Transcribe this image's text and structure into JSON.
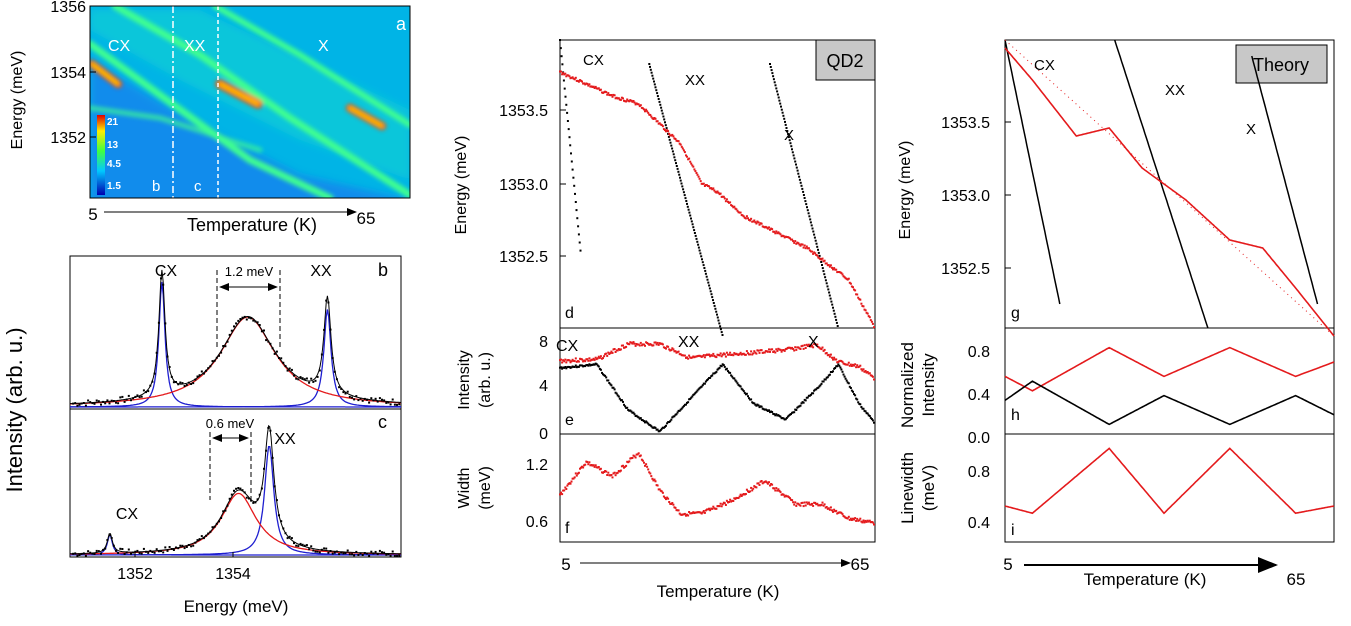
{
  "colors": {
    "red": "#e41a1c",
    "black": "#000000",
    "blue": "#1f1fd0",
    "gray": "#c8c8c8"
  },
  "chart_data": [
    {
      "panel": "a",
      "type": "heatmap",
      "ylabel": "Energy (meV)",
      "xlabel": "Temperature (K)",
      "y_ticks": [
        "1356",
        "1354",
        "1352"
      ],
      "x_ticks": [
        "5",
        "65"
      ],
      "ylim": [
        1350.3,
        1356
      ],
      "colorbar_labels": [
        "21",
        "13",
        "4.5",
        "1.5"
      ],
      "line_labels": [
        "CX",
        "XX",
        "X"
      ],
      "cut_labels": [
        "b",
        "c"
      ]
    },
    {
      "panel": "b",
      "type": "line",
      "ylabel": "Intensity (arb. u.)",
      "peak_labels": [
        "CX",
        "XX"
      ],
      "annotation": "1.2 meV",
      "series": [
        {
          "name": "CX",
          "center": 1352.1
        },
        {
          "name": "XX",
          "center": 1354.8
        },
        {
          "name": "",
          "center": 1353.5
        }
      ]
    },
    {
      "panel": "c",
      "type": "line",
      "xlabel": "Energy (meV)",
      "x_ticks": [
        "1352",
        "1354"
      ],
      "xlim": [
        1350.6,
        1356.0
      ],
      "peak_labels": [
        "CX",
        "XX"
      ],
      "annotation": "0.6 meV",
      "series": [
        {
          "name": "CX",
          "center": 1351.25
        },
        {
          "name": "XX",
          "center": 1353.85
        },
        {
          "name": "",
          "center": 1353.35
        }
      ]
    },
    {
      "panel": "d",
      "type": "scatter",
      "box_label": "QD2",
      "ylabel": "Energy (meV)",
      "y_ticks": [
        "1353.5",
        "1353.0",
        "1352.5"
      ],
      "ylim": [
        1352.15,
        1353.95
      ],
      "line_labels": [
        "CX",
        "XX",
        "X"
      ],
      "series": [
        {
          "name": "CX",
          "x": [
            5,
            9
          ],
          "y": [
            1353.95,
            1352.6
          ]
        },
        {
          "name": "XX",
          "x": [
            22,
            36
          ],
          "y": [
            1353.8,
            1352.1
          ]
        },
        {
          "name": "X",
          "x": [
            45,
            58
          ],
          "y": [
            1353.8,
            1352.15
          ]
        },
        {
          "name": "",
          "x": [
            5,
            15,
            20,
            28,
            32,
            35,
            40,
            46,
            52,
            60,
            65
          ],
          "y": [
            1353.75,
            1353.6,
            1353.55,
            1353.3,
            1353.05,
            1353.0,
            1352.85,
            1352.75,
            1352.65,
            1352.45,
            1352.15
          ]
        }
      ]
    },
    {
      "panel": "e",
      "type": "scatter",
      "ylabel": "Intensity (arb. u.)",
      "y_ticks": [
        "8",
        "4",
        "0"
      ],
      "ylim": [
        0,
        8
      ],
      "line_labels": [
        "CX",
        "XX",
        "X"
      ],
      "series": [
        {
          "name": "",
          "x": [
            5,
            12,
            18,
            24,
            30,
            36,
            42,
            48,
            54,
            58,
            62,
            65
          ],
          "y": [
            6.1,
            6.2,
            7.5,
            7.5,
            6.3,
            6.6,
            6.8,
            7.0,
            7.4,
            6.0,
            5.6,
            4.6
          ]
        },
        {
          "name": "",
          "x": [
            5,
            12,
            18,
            24,
            30,
            36,
            42,
            48,
            54,
            58,
            62,
            65
          ],
          "y": [
            5.5,
            5.8,
            2.0,
            0.2,
            3.0,
            5.8,
            2.5,
            1.2,
            3.8,
            5.8,
            2.5,
            0.9
          ]
        }
      ]
    },
    {
      "panel": "f",
      "type": "scatter",
      "ylabel": "Width (meV)",
      "y_ticks": [
        "1.2",
        "0.6"
      ],
      "ylim": [
        0.4,
        1.55
      ],
      "x_ticks": [
        "5",
        "65"
      ],
      "xlabel": "Temperature (K)",
      "series": [
        {
          "name": "",
          "x": [
            5,
            10,
            15,
            20,
            24,
            28,
            32,
            38,
            44,
            50,
            55,
            60,
            65
          ],
          "y": [
            0.9,
            1.25,
            1.1,
            1.35,
            0.95,
            0.7,
            0.7,
            0.85,
            1.05,
            0.8,
            0.8,
            0.65,
            0.6
          ]
        }
      ]
    },
    {
      "panel": "g",
      "type": "line",
      "box_label": "Theory",
      "ylabel": "Energy (meV)",
      "y_ticks": [
        "1353.5",
        "1353.0",
        "1352.5"
      ],
      "ylim": [
        1352.15,
        1353.95
      ],
      "line_labels": [
        "CX",
        "XX",
        "X"
      ],
      "series": [
        {
          "name": "CX",
          "x": [
            5,
            15
          ],
          "y": [
            1353.95,
            1352.3
          ]
        },
        {
          "name": "XX",
          "x": [
            25,
            42
          ],
          "y": [
            1353.95,
            1352.15
          ]
        },
        {
          "name": "X",
          "x": [
            50,
            62
          ],
          "y": [
            1353.85,
            1352.3
          ]
        },
        {
          "name": "",
          "x": [
            5,
            10,
            18,
            24,
            30,
            38,
            46,
            52,
            58,
            65
          ],
          "y": [
            1353.9,
            1353.7,
            1353.35,
            1353.4,
            1353.15,
            1352.95,
            1352.7,
            1352.65,
            1352.4,
            1352.1
          ]
        }
      ]
    },
    {
      "panel": "h",
      "type": "line",
      "ylabel": "Normalized Intensity",
      "y_ticks": [
        "0.8",
        "0.4",
        "0.0"
      ],
      "ylim": [
        0,
        1.0
      ],
      "series": [
        {
          "name": "",
          "x": [
            5,
            10,
            24,
            34,
            46,
            58,
            65
          ],
          "y": [
            0.6,
            0.45,
            0.9,
            0.6,
            0.9,
            0.6,
            0.75
          ]
        },
        {
          "name": "",
          "x": [
            5,
            10,
            24,
            34,
            46,
            58,
            65
          ],
          "y": [
            0.35,
            0.55,
            0.1,
            0.4,
            0.1,
            0.4,
            0.2
          ]
        }
      ]
    },
    {
      "panel": "i",
      "type": "line",
      "ylabel": "Linewidth (meV)",
      "y_ticks": [
        "0.8",
        "0.4"
      ],
      "ylim": [
        0.3,
        1.05
      ],
      "x_ticks": [
        "5",
        "65"
      ],
      "xlabel": "Temperature (K)",
      "series": [
        {
          "name": "",
          "x": [
            5,
            10,
            24,
            34,
            46,
            58,
            65
          ],
          "y": [
            0.55,
            0.5,
            0.95,
            0.5,
            0.95,
            0.5,
            0.55
          ]
        }
      ]
    }
  ],
  "panels": {
    "a": {
      "letter": "a",
      "ylabel": "Energy (meV)",
      "xlabel": "Temperature (K)",
      "y1": "1356",
      "y2": "1354",
      "y3": "1352",
      "x1": "5",
      "x2": "65",
      "cx": "CX",
      "xx": "XX",
      "x": "X",
      "b": "b",
      "c": "c",
      "cb1": "21",
      "cb2": "13",
      "cb3": "4.5",
      "cb4": "1.5"
    },
    "bc": {
      "ylabel": "Intensity (arb. u.)",
      "b_letter": "b",
      "c_letter": "c",
      "b_cx": "CX",
      "b_xx": "XX",
      "b_ann": "1.2 meV",
      "c_cx": "CX",
      "c_xx": "XX",
      "c_ann": "0.6 meV",
      "x1": "1352",
      "x2": "1354",
      "xlabel": "Energy (meV)"
    },
    "def": {
      "box": "QD2",
      "ylabel_d": "Energy (meV)",
      "d1": "1353.5",
      "d2": "1353.0",
      "d3": "1352.5",
      "d_letter": "d",
      "cx": "CX",
      "xx": "XX",
      "x": "X",
      "ylabel_e1": "Intensity",
      "ylabel_e2": "(arb. u.)",
      "e1": "8",
      "e2": "4",
      "e3": "0",
      "e_letter": "e",
      "e_cx": "CX",
      "e_xx": "XX",
      "e_x": "X",
      "ylabel_f1": "Width",
      "ylabel_f2": "(meV)",
      "f1": "1.2",
      "f2": "0.6",
      "f_letter": "f",
      "x1": "5",
      "x2": "65",
      "xlabel": "Temperature (K)"
    },
    "ghi": {
      "box": "Theory",
      "ylabel_g": "Energy (meV)",
      "g1": "1353.5",
      "g2": "1353.0",
      "g3": "1352.5",
      "g_letter": "g",
      "cx": "CX",
      "xx": "XX",
      "x": "X",
      "ylabel_h1": "Normalized",
      "ylabel_h2": "Intensity",
      "h1": "0.8",
      "h2": "0.4",
      "h3": "0.0",
      "h_letter": "h",
      "ylabel_i1": "Linewidth",
      "ylabel_i2": "(meV)",
      "i1": "0.8",
      "i2": "0.4",
      "i_letter": "i",
      "x1": "5",
      "x2": "65",
      "xlabel": "Temperature (K)"
    }
  }
}
